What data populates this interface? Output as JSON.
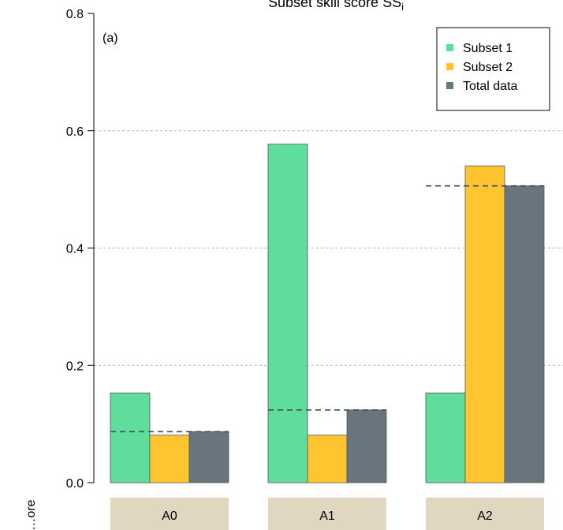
{
  "chart_data": {
    "type": "bar",
    "title": "Subset skill score SS",
    "title_subscript": "i",
    "panel_label": "(a)",
    "ylabel": "…ore",
    "categories": [
      "A0",
      "A1",
      "A2"
    ],
    "ylim": [
      0.0,
      0.8
    ],
    "yticks": [
      "0.0",
      "0.2",
      "0.4",
      "0.6",
      "0.8"
    ],
    "ytick_values": [
      0.0,
      0.2,
      0.4,
      0.6,
      0.8
    ],
    "grid": "horizontal dashed",
    "legend_position": "top-right",
    "series": [
      {
        "name": "Subset 1",
        "color": "#5fdd9d",
        "values": [
          0.153,
          0.577,
          0.153
        ]
      },
      {
        "name": "Subset 2",
        "color": "#ffc531",
        "values": [
          0.081,
          0.081,
          0.54
        ]
      },
      {
        "name": "Total data",
        "color": "#68757d",
        "values": [
          0.087,
          0.124,
          0.506
        ]
      }
    ],
    "reference_lines": [
      0.087,
      0.124,
      0.506
    ],
    "category_strip_color": "#e1d6c0"
  }
}
